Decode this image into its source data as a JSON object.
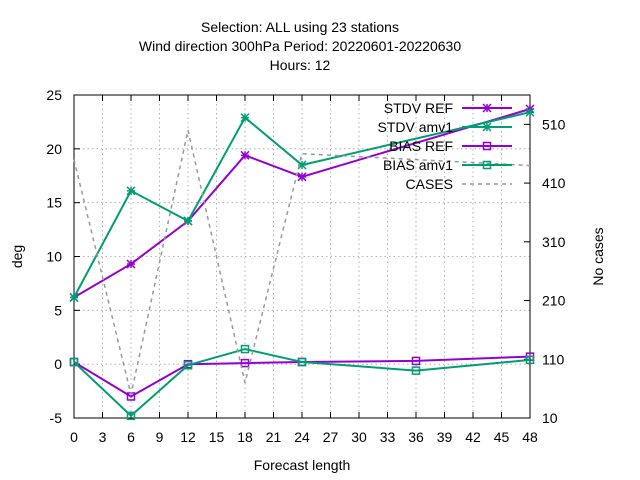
{
  "chart_data": {
    "type": "line",
    "title_lines": [
      "Selection: ALL using    23 stations",
      "Wind direction 300hPa   Period: 20220601-20220630",
      "Hours:  12"
    ],
    "xlabel": "Forecast length",
    "ylabel": "deg",
    "y2label": "No cases",
    "xlim": [
      0,
      48
    ],
    "ylim": [
      -5,
      25
    ],
    "y2lim": [
      10,
      560
    ],
    "xticks": [
      "0",
      "3",
      "6",
      "9",
      "12",
      "15",
      "18",
      "21",
      "24",
      "27",
      "30",
      "33",
      "36",
      "39",
      "42",
      "45",
      "48"
    ],
    "yticks": [
      "-5",
      "0",
      "5",
      "10",
      "15",
      "20",
      "25"
    ],
    "y2ticks": [
      "10",
      "110",
      "210",
      "310",
      "410",
      "510"
    ],
    "grid": true,
    "legend_position": "top-right",
    "series": [
      {
        "name": "STDV REF",
        "axis": "y1",
        "color": "#9400d3",
        "marker": "star",
        "dash": false,
        "x": [
          0,
          6,
          12,
          18,
          24,
          48
        ],
        "y": [
          6.2,
          9.3,
          13.3,
          19.4,
          17.4,
          23.7
        ]
      },
      {
        "name": "STDV amv1",
        "axis": "y1",
        "color": "#009e73",
        "marker": "star",
        "dash": false,
        "x": [
          0,
          6,
          12,
          18,
          24,
          48
        ],
        "y": [
          6.2,
          16.1,
          13.3,
          22.9,
          18.5,
          23.4
        ]
      },
      {
        "name": "BIAS REF",
        "axis": "y1",
        "color": "#9400d3",
        "marker": "square",
        "dash": false,
        "x": [
          0,
          6,
          12,
          18,
          24,
          36,
          48
        ],
        "y": [
          0.2,
          -3.0,
          0.0,
          0.1,
          0.2,
          0.3,
          0.7
        ]
      },
      {
        "name": "BIAS amv1",
        "axis": "y1",
        "color": "#009e73",
        "marker": "square",
        "dash": false,
        "x": [
          0,
          6,
          12,
          18,
          24,
          36,
          48
        ],
        "y": [
          0.2,
          -4.8,
          -0.1,
          1.4,
          0.2,
          -0.6,
          0.4
        ]
      },
      {
        "name": "CASES",
        "axis": "y2",
        "color": "#999999",
        "marker": "none",
        "dash": true,
        "x": [
          0,
          6,
          12,
          18,
          24,
          48
        ],
        "y": [
          450,
          50,
          500,
          70,
          460,
          440
        ]
      }
    ]
  }
}
